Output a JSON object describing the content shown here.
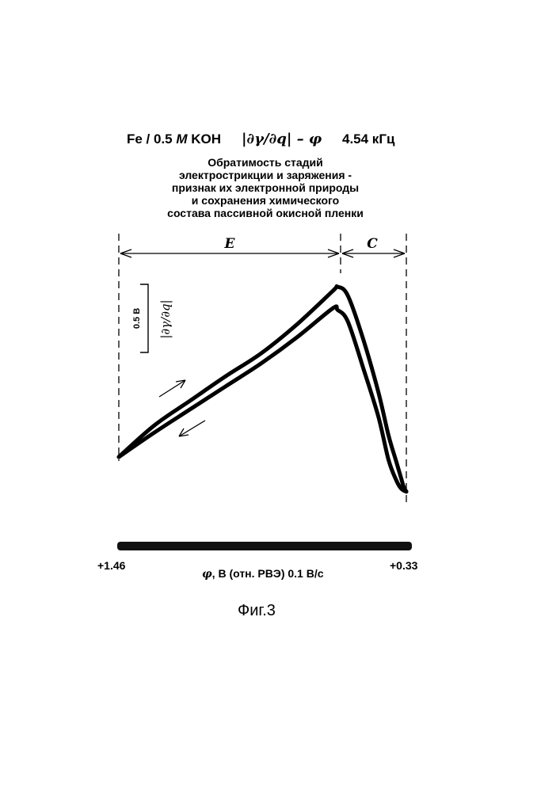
{
  "header": {
    "system": "Fe / 0.5 M KOH",
    "system_parts": [
      "Fe / 0.5 ",
      "M",
      " KOH"
    ],
    "derivative": "|∂γ/∂q| – φ",
    "frequency": "4.54 кГц"
  },
  "subtitle_lines": [
    "Обратимость стадий",
    "электрострикции и заряжения -",
    "признак их электронной природы",
    "и сохранения  химического",
    "состава пассивной окисной пленки"
  ],
  "caption": "Фиг.3",
  "colors": {
    "ink": "#000000",
    "background": "#ffffff"
  },
  "chart_data": {
    "type": "line",
    "title": "Fe / 0.5 M KOH |∂γ/∂q| – φ 4.54 кГц",
    "xlabel": "φ, В (отн. РВЭ) 0.1 В/с",
    "ylabel": "|∂γ/∂q|",
    "x_direction": "decreasing to the right",
    "xlim": [
      1.46,
      0.33
    ],
    "x_tick_labels": [
      "+1.46",
      "+0.33"
    ],
    "y_scale_bar": "0.5 В",
    "y_units": "В (0.5 В scale bar)",
    "regions": [
      {
        "label": "E",
        "x_start": 1.46,
        "x_end": 0.6
      },
      {
        "label": "C",
        "x_start": 0.6,
        "x_end": 0.33
      }
    ],
    "series": [
      {
        "direction": "forward",
        "arrow_hint": "→",
        "x": [
          1.46,
          1.32,
          1.18,
          1.04,
          0.9,
          0.76,
          0.62,
          0.6,
          0.56,
          0.5,
          0.44,
          0.4,
          0.37,
          0.35,
          0.34,
          0.33
        ],
        "y": [
          0.0,
          0.22,
          0.39,
          0.56,
          0.72,
          0.92,
          1.15,
          1.18,
          1.12,
          0.82,
          0.45,
          0.15,
          -0.03,
          -0.15,
          -0.21,
          -0.24
        ]
      },
      {
        "direction": "reverse",
        "arrow_hint": "←",
        "x": [
          0.33,
          0.35,
          0.37,
          0.4,
          0.44,
          0.5,
          0.56,
          0.6,
          0.62,
          0.76,
          0.9,
          1.04,
          1.18,
          1.32,
          1.46
        ],
        "y": [
          -0.24,
          -0.22,
          -0.16,
          -0.02,
          0.28,
          0.62,
          0.94,
          1.02,
          1.03,
          0.83,
          0.65,
          0.49,
          0.33,
          0.17,
          0.0
        ]
      }
    ],
    "ylim": [
      -0.4,
      1.5
    ]
  }
}
